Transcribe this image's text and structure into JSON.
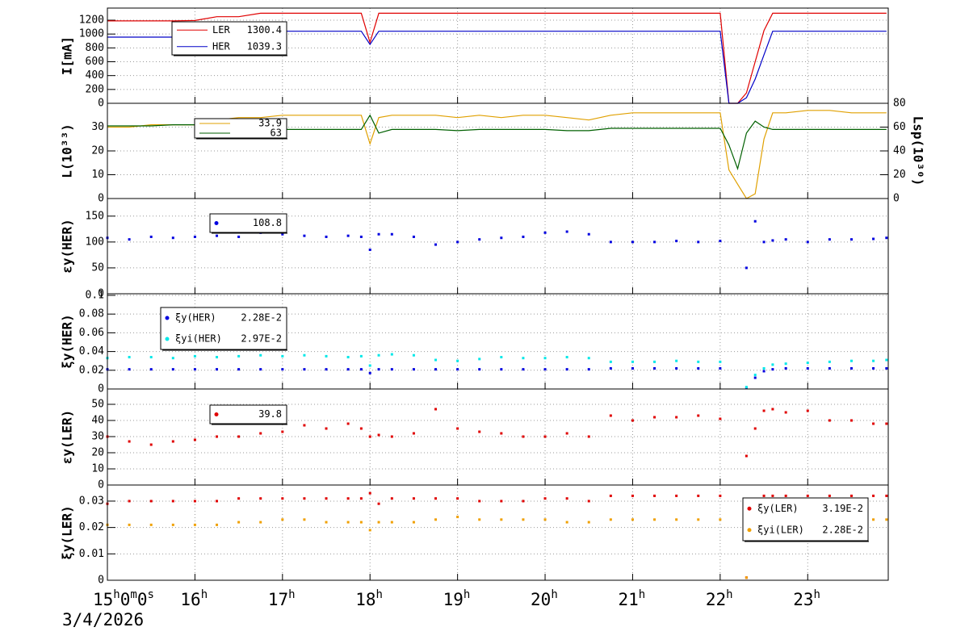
{
  "chart_data": [
    {
      "type": "line",
      "ytitle": "I[mA]",
      "ylim": [
        0,
        1375
      ],
      "yticks": [
        0,
        200,
        400,
        600,
        800,
        1000,
        1200
      ],
      "grid": true,
      "x": [
        15.0,
        15.25,
        15.5,
        15.75,
        16.0,
        16.25,
        16.5,
        16.75,
        17.0,
        17.25,
        17.5,
        17.75,
        17.9,
        18.0,
        18.1,
        18.25,
        18.5,
        18.75,
        19.0,
        19.25,
        19.5,
        19.75,
        20.0,
        20.25,
        20.5,
        20.75,
        21.0,
        21.25,
        21.5,
        21.75,
        22.0,
        22.1,
        22.2,
        22.3,
        22.4,
        22.5,
        22.6,
        22.75,
        23.0,
        23.25,
        23.5,
        23.75,
        23.9
      ],
      "series": [
        {
          "name": "LER",
          "color": "#e00000",
          "legend_value": 1300.4,
          "values": [
            1190,
            1190,
            1190,
            1190,
            1195,
            1250,
            1250,
            1300,
            1300,
            1300,
            1300,
            1300,
            1300,
            880,
            1300,
            1300,
            1300,
            1300,
            1300,
            1300,
            1300,
            1300,
            1300,
            1300,
            1300,
            1300,
            1300,
            1300,
            1300,
            1300,
            1300,
            0,
            0,
            150,
            600,
            1050,
            1300,
            1300,
            1300,
            1300,
            1300,
            1300,
            1300
          ]
        },
        {
          "name": "HER",
          "color": "#0000c8",
          "legend_value": 1039.3,
          "values": [
            955,
            955,
            955,
            955,
            960,
            1000,
            1010,
            1030,
            1040,
            1040,
            1040,
            1040,
            1040,
            850,
            1040,
            1040,
            1040,
            1040,
            1040,
            1040,
            1040,
            1040,
            1040,
            1040,
            1040,
            1040,
            1040,
            1040,
            1040,
            1040,
            1040,
            0,
            0,
            80,
            350,
            700,
            1040,
            1040,
            1040,
            1040,
            1040,
            1040,
            1040
          ]
        }
      ]
    },
    {
      "type": "line",
      "ytitle": "L(10³³)",
      "y2title": "Lsp(10³⁰)",
      "ylim": [
        0,
        40
      ],
      "yticks": [
        0,
        10,
        20,
        30
      ],
      "y2lim": [
        0,
        80
      ],
      "y2ticks": [
        0,
        20,
        40,
        60,
        80
      ],
      "grid": true,
      "x": [
        15.0,
        15.25,
        15.5,
        15.75,
        16.0,
        16.25,
        16.5,
        16.75,
        17.0,
        17.25,
        17.5,
        17.75,
        17.9,
        18.0,
        18.1,
        18.25,
        18.5,
        18.75,
        19.0,
        19.25,
        19.5,
        19.75,
        20.0,
        20.25,
        20.5,
        20.75,
        21.0,
        21.25,
        21.5,
        21.75,
        22.0,
        22.1,
        22.2,
        22.3,
        22.4,
        22.5,
        22.6,
        22.75,
        23.0,
        23.25,
        23.5,
        23.75,
        23.9
      ],
      "series": [
        {
          "color": "#e0a000",
          "legend_value": 33.9,
          "values": [
            30,
            30,
            31,
            31,
            31,
            33,
            34,
            34,
            35,
            35,
            35,
            35,
            35,
            23,
            34,
            35,
            35,
            35,
            34,
            35,
            34,
            35,
            35,
            34,
            33,
            35,
            36,
            36,
            36,
            36,
            36,
            12,
            6,
            0,
            2,
            25,
            36,
            36,
            37,
            37,
            36,
            36,
            36
          ]
        },
        {
          "color": "#006000",
          "axis": "y2",
          "legend_value": 63.0,
          "values": [
            61,
            61,
            61,
            62,
            62,
            59,
            58,
            58,
            58,
            58,
            58,
            58,
            58,
            70,
            55,
            58,
            58,
            58,
            57,
            58,
            58,
            58,
            58,
            57,
            57,
            59,
            59,
            59,
            59,
            59,
            59,
            45,
            25,
            55,
            65,
            60,
            58,
            58,
            58,
            58,
            58,
            58,
            58
          ]
        }
      ]
    },
    {
      "type": "scatter",
      "ytitle": "εy(HER)",
      "ylim": [
        0,
        184
      ],
      "yticks": [
        0,
        50,
        100,
        150
      ],
      "grid": true,
      "x": [
        15.0,
        15.25,
        15.5,
        15.75,
        16.0,
        16.25,
        16.5,
        16.75,
        17.0,
        17.25,
        17.5,
        17.75,
        17.9,
        18.0,
        18.1,
        18.25,
        18.5,
        18.75,
        19.0,
        19.25,
        19.5,
        19.75,
        20.0,
        20.25,
        20.5,
        20.75,
        21.0,
        21.25,
        21.5,
        21.75,
        22.0,
        22.1,
        22.2,
        22.3,
        22.4,
        22.5,
        22.6,
        22.75,
        23.0,
        23.25,
        23.5,
        23.75,
        23.9
      ],
      "series": [
        {
          "color": "#0000e0",
          "legend_value": 108.8,
          "values": [
            108,
            105,
            110,
            108,
            110,
            112,
            110,
            118,
            115,
            112,
            110,
            112,
            110,
            85,
            115,
            115,
            110,
            95,
            100,
            105,
            108,
            110,
            118,
            120,
            115,
            100,
            100,
            100,
            102,
            100,
            102,
            null,
            null,
            50,
            140,
            100,
            103,
            105,
            100,
            105,
            105,
            106,
            108
          ]
        }
      ]
    },
    {
      "type": "scatter",
      "ytitle": "ξy(HER)",
      "ylim": [
        0,
        0.1017
      ],
      "yticks": [
        0,
        0.02,
        0.04,
        0.06,
        0.08,
        0.1
      ],
      "grid": true,
      "x": [
        15.0,
        15.25,
        15.5,
        15.75,
        16.0,
        16.25,
        16.5,
        16.75,
        17.0,
        17.25,
        17.5,
        17.75,
        17.9,
        18.0,
        18.1,
        18.25,
        18.5,
        18.75,
        19.0,
        19.25,
        19.5,
        19.75,
        20.0,
        20.25,
        20.5,
        20.75,
        21.0,
        21.25,
        21.5,
        21.75,
        22.0,
        22.1,
        22.2,
        22.3,
        22.4,
        22.5,
        22.6,
        22.75,
        23.0,
        23.25,
        23.5,
        23.75,
        23.9
      ],
      "series": [
        {
          "name": "ξy(HER)",
          "color": "#0000e0",
          "legend_value": {
            "value": 0.0228,
            "label": "2.28E-2"
          },
          "values": [
            0.021,
            0.021,
            0.021,
            0.021,
            0.021,
            0.021,
            0.021,
            0.021,
            0.021,
            0.021,
            0.021,
            0.021,
            0.021,
            0.017,
            0.021,
            0.021,
            0.021,
            0.021,
            0.021,
            0.021,
            0.021,
            0.021,
            0.021,
            0.021,
            0.021,
            0.022,
            0.022,
            0.022,
            0.022,
            0.022,
            0.022,
            null,
            null,
            0.001,
            0.012,
            0.019,
            0.021,
            0.022,
            0.022,
            0.022,
            0.022,
            0.022,
            0.022
          ]
        },
        {
          "name": "ξyi(HER)",
          "color": "#00e8e8",
          "legend_value": {
            "value": 0.0297,
            "label": "2.97E-2"
          },
          "values": [
            0.033,
            0.034,
            0.034,
            0.033,
            0.035,
            0.034,
            0.035,
            0.036,
            0.035,
            0.036,
            0.035,
            0.034,
            0.035,
            0.025,
            0.036,
            0.037,
            0.036,
            0.031,
            0.03,
            0.032,
            0.034,
            0.033,
            0.033,
            0.034,
            0.033,
            0.029,
            0.029,
            0.029,
            0.03,
            0.029,
            0.029,
            null,
            null,
            0.002,
            0.015,
            0.022,
            0.026,
            0.027,
            0.028,
            0.029,
            0.03,
            0.03,
            0.031
          ]
        }
      ]
    },
    {
      "type": "scatter",
      "ytitle": "εy(LER)",
      "ylim": [
        0,
        59.5
      ],
      "yticks": [
        0,
        10,
        20,
        30,
        40,
        50
      ],
      "grid": true,
      "x": [
        15.0,
        15.25,
        15.5,
        15.75,
        16.0,
        16.25,
        16.5,
        16.75,
        17.0,
        17.25,
        17.5,
        17.75,
        17.9,
        18.0,
        18.1,
        18.25,
        18.5,
        18.75,
        19.0,
        19.25,
        19.5,
        19.75,
        20.0,
        20.25,
        20.5,
        20.75,
        21.0,
        21.25,
        21.5,
        21.75,
        22.0,
        22.1,
        22.2,
        22.3,
        22.4,
        22.5,
        22.6,
        22.75,
        23.0,
        23.25,
        23.5,
        23.75,
        23.9
      ],
      "series": [
        {
          "color": "#e00000",
          "legend_value": 39.8,
          "values": [
            30,
            27,
            25,
            27,
            28,
            30,
            30,
            32,
            33,
            37,
            35,
            38,
            35,
            30,
            31,
            30,
            32,
            47,
            35,
            33,
            32,
            30,
            30,
            32,
            30,
            43,
            40,
            42,
            42,
            43,
            41,
            null,
            null,
            18,
            35,
            46,
            47,
            45,
            46,
            40,
            40,
            38,
            38
          ]
        }
      ]
    },
    {
      "type": "scatter",
      "ytitle": "ξy(LER)",
      "ylim": [
        0,
        0.0361
      ],
      "yticks": [
        0,
        0.01,
        0.02,
        0.03
      ],
      "grid": true,
      "xlim": [
        15,
        23.92
      ],
      "xticks": [
        {
          "value": 15,
          "label": "15h0m0s"
        },
        {
          "value": 16,
          "label": "16h"
        },
        {
          "value": 17,
          "label": "17h"
        },
        {
          "value": 18,
          "label": "18h"
        },
        {
          "value": 19,
          "label": "19h"
        },
        {
          "value": 20,
          "label": "20h"
        },
        {
          "value": 21,
          "label": "21h"
        },
        {
          "value": 22,
          "label": "22h"
        },
        {
          "value": 23,
          "label": "23h"
        }
      ],
      "date": "3/4/2026",
      "x": [
        15.0,
        15.25,
        15.5,
        15.75,
        16.0,
        16.25,
        16.5,
        16.75,
        17.0,
        17.25,
        17.5,
        17.75,
        17.9,
        18.0,
        18.1,
        18.25,
        18.5,
        18.75,
        19.0,
        19.25,
        19.5,
        19.75,
        20.0,
        20.25,
        20.5,
        20.75,
        21.0,
        21.25,
        21.5,
        21.75,
        22.0,
        22.1,
        22.2,
        22.3,
        22.4,
        22.5,
        22.6,
        22.75,
        23.0,
        23.25,
        23.5,
        23.75,
        23.9
      ],
      "series": [
        {
          "name": "ξy(LER)",
          "color": "#e00000",
          "legend_value": {
            "value": 0.0319,
            "label": "3.19E-2"
          },
          "values": [
            0.029,
            0.03,
            0.03,
            0.03,
            0.03,
            0.03,
            0.031,
            0.031,
            0.031,
            0.031,
            0.031,
            0.031,
            0.031,
            0.033,
            0.029,
            0.031,
            0.031,
            0.031,
            0.031,
            0.03,
            0.03,
            0.03,
            0.031,
            0.031,
            0.03,
            0.032,
            0.032,
            0.032,
            0.032,
            0.032,
            0.032,
            null,
            null,
            0.001,
            0.02,
            0.032,
            0.032,
            0.032,
            0.032,
            0.032,
            0.032,
            0.032,
            0.032
          ]
        },
        {
          "name": "ξyi(LER)",
          "color": "#f0a000",
          "legend_value": {
            "value": 0.0228,
            "label": "2.28E-2"
          },
          "values": [
            0.021,
            0.021,
            0.021,
            0.021,
            0.021,
            0.021,
            0.022,
            0.022,
            0.023,
            0.023,
            0.022,
            0.022,
            0.022,
            0.019,
            0.022,
            0.022,
            0.022,
            0.023,
            0.024,
            0.023,
            0.023,
            0.023,
            0.023,
            0.022,
            0.022,
            0.023,
            0.023,
            0.023,
            0.023,
            0.023,
            0.023,
            null,
            null,
            0.001,
            0.017,
            0.023,
            0.023,
            0.023,
            0.023,
            0.023,
            0.023,
            0.023,
            0.023
          ]
        }
      ]
    }
  ]
}
